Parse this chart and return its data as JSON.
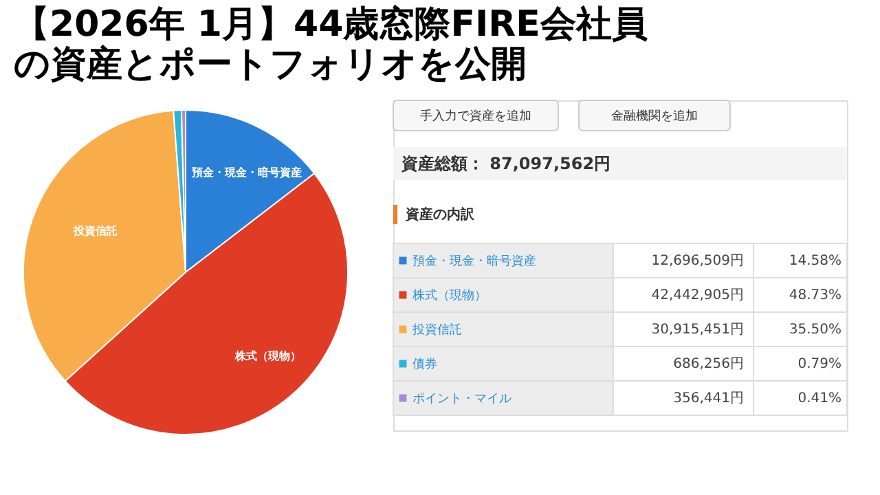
{
  "chart_data": {
    "type": "pie",
    "title": "【2026年 1月】44歳窓際FIRE会社員",
    "subtitle": "の資産とポートフォリオを公開",
    "categories": [
      "預金・現金・暗号資産",
      "株式（現物）",
      "投資信託",
      "債券",
      "ポイント・マイル"
    ],
    "values": [
      12696509,
      42442905,
      30915451,
      686256,
      356441
    ],
    "value_labels": [
      "12,696,509円",
      "42,442,905円",
      "30,915,451円",
      "686,256円",
      "356,441円"
    ],
    "colors": [
      "#2a80d6",
      "#e03b24",
      "#f8ad4a",
      "#2bb5d8",
      "#a78bd8"
    ],
    "legend": "right",
    "annotations": [
      "手入力で資産を追加",
      "金融機関を追加",
      "資産総額： 87,097,562円",
      "資産の内訳",
      {
        "text": "14.58%",
        "x": "預金・現金・暗号資産"
      },
      {
        "text": "48.73%",
        "x": "株式（現物）"
      },
      {
        "text": "35.50%",
        "x": "投資信託"
      },
      {
        "text": "0.79%",
        "x": "債券"
      },
      {
        "text": "0.41%",
        "x": "ポイント・マイル"
      }
    ]
  }
}
